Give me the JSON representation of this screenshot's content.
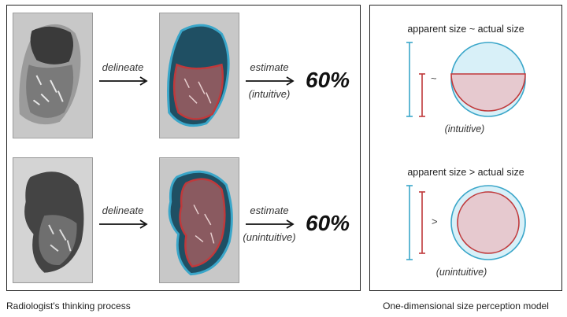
{
  "left_caption": "Radiologist's thinking process",
  "right_caption": "One-dimensional size perception model",
  "rows": [
    {
      "step1_label": "delineate",
      "step2_label": "estimate",
      "step2_note": "(intuitive)",
      "percentage": "60%"
    },
    {
      "step1_label": "delineate",
      "step2_label": "estimate",
      "step2_note": "(unintuitive)",
      "percentage": "60%"
    }
  ],
  "models": [
    {
      "title": "apparent size ~ actual size",
      "relation_symbol": "~",
      "note": "(intuitive)"
    },
    {
      "title": "apparent size > actual size",
      "relation_symbol": ">",
      "note": "(unintuitive)"
    }
  ],
  "colors": {
    "outer_lung": "#3aa6c9",
    "inner_lesion": "#c0393b",
    "outer_fill": "#d8f0f8",
    "inner_fill": "#e6c9cf"
  }
}
